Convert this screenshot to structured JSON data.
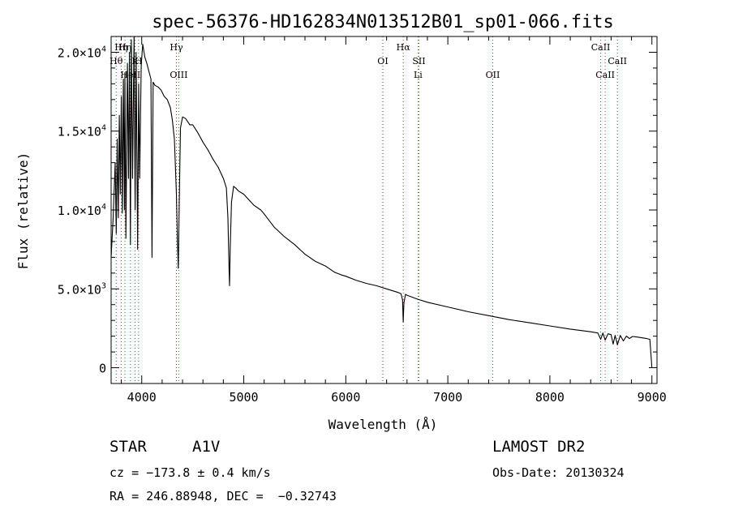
{
  "chart_data": {
    "type": "line",
    "title": "spec-56376-HD162834N013512B01_sp01-066.fits",
    "xlabel": "Wavelength (Å)",
    "ylabel": "Flux (relative)",
    "xlim": [
      3700,
      9050
    ],
    "ylim": [
      -1000,
      21000
    ],
    "x_ticks": [
      {
        "value": 4000,
        "label": "4000"
      },
      {
        "value": 5000,
        "label": "5000"
      },
      {
        "value": 6000,
        "label": "6000"
      },
      {
        "value": 7000,
        "label": "7000"
      },
      {
        "value": 8000,
        "label": "8000"
      },
      {
        "value": 9000,
        "label": "9000"
      }
    ],
    "y_ticks": [
      {
        "value": 0,
        "mant": "0",
        "exp": ""
      },
      {
        "value": 5000,
        "mant": "5.0×10",
        "exp": "3"
      },
      {
        "value": 10000,
        "mant": "1.0×10",
        "exp": "4"
      },
      {
        "value": 15000,
        "mant": "1.5×10",
        "exp": "4"
      },
      {
        "value": 20000,
        "mant": "2.0×10",
        "exp": "4"
      }
    ],
    "grid": false,
    "series": [
      {
        "color": "#000000",
        "x": [
          3700,
          3720,
          3740,
          3750,
          3760,
          3770,
          3780,
          3790,
          3800,
          3810,
          3820,
          3830,
          3835,
          3845,
          3860,
          3870,
          3880,
          3889,
          3898,
          3910,
          3925,
          3935,
          3945,
          3960,
          3970,
          3980,
          3995,
          4010,
          4030,
          4050,
          4070,
          4090,
          4101,
          4112,
          4130,
          4160,
          4190,
          4220,
          4250,
          4280,
          4300,
          4320,
          4340,
          4350,
          4358,
          4368,
          4380,
          4400,
          4430,
          4471,
          4500,
          4550,
          4600,
          4650,
          4700,
          4750,
          4800,
          4830,
          4845,
          4855,
          4861,
          4867,
          4880,
          4900,
          4920,
          4950,
          5000,
          5100,
          5167,
          5200,
          5300,
          5400,
          5500,
          5600,
          5700,
          5800,
          5890,
          5950,
          6000,
          6100,
          6200,
          6300,
          6400,
          6500,
          6540,
          6556,
          6563,
          6570,
          6585,
          6600,
          6700,
          6800,
          7000,
          7200,
          7400,
          7600,
          7800,
          8000,
          8200,
          8400,
          8470,
          8498,
          8520,
          8542,
          8570,
          8600,
          8620,
          8640,
          8662,
          8690,
          8720,
          8750,
          8780,
          8810,
          8850,
          8900,
          8950,
          8980,
          9000
        ],
        "y": [
          7000,
          9500,
          13000,
          8500,
          14500,
          9500,
          16000,
          11000,
          17200,
          9800,
          18300,
          10000,
          18700,
          8200,
          19300,
          12000,
          20000,
          7800,
          20800,
          12000,
          21000,
          10000,
          20000,
          7500,
          18000,
          12000,
          19200,
          20500,
          19700,
          19300,
          18800,
          18300,
          7000,
          18100,
          17900,
          17800,
          17600,
          17200,
          17000,
          16500,
          15700,
          14500,
          11000,
          8000,
          6300,
          10500,
          15200,
          15900,
          15800,
          15400,
          15400,
          14900,
          14300,
          13800,
          13200,
          12700,
          12000,
          11400,
          9500,
          6500,
          5200,
          7500,
          10500,
          11500,
          11400,
          11200,
          11000,
          10300,
          10000,
          9750,
          8900,
          8300,
          7800,
          7200,
          6750,
          6450,
          6050,
          5900,
          5800,
          5550,
          5350,
          5200,
          5000,
          4800,
          4700,
          4300,
          2900,
          4100,
          4650,
          4600,
          4350,
          4150,
          3850,
          3550,
          3300,
          3050,
          2850,
          2650,
          2450,
          2280,
          2200,
          1800,
          2200,
          1750,
          2150,
          2100,
          1500,
          2050,
          1450,
          2050,
          1700,
          2000,
          1850,
          1980,
          1950,
          1900,
          1850,
          1800,
          0
        ]
      }
    ],
    "line_markers": [
      {
        "x": 3750,
        "label": "Hθ",
        "row": 2
      },
      {
        "x": 3798,
        "label": "Hη",
        "row": 1
      },
      {
        "x": 3835,
        "label": "Hη",
        "row": 1
      },
      {
        "x": 3889,
        "label": "HeII",
        "row": 3
      },
      {
        "x": 3934,
        "label": "K",
        "row": 2
      },
      {
        "x": 3969,
        "label": "H",
        "row": 2
      },
      {
        "x": 4340,
        "label": "Hγ",
        "row": 1
      },
      {
        "x": 4363,
        "label": "OIII",
        "row": 3
      },
      {
        "x": 6363,
        "label": "OI",
        "row": 2
      },
      {
        "x": 6563,
        "label": "Hα",
        "row": 1
      },
      {
        "x": 6717,
        "label": "SII",
        "row": 2
      },
      {
        "x": 6708,
        "label": "Li",
        "row": 3
      },
      {
        "x": 7440,
        "label": "OII",
        "row": 3
      },
      {
        "x": 8498,
        "label": "CaII",
        "row": 1
      },
      {
        "x": 8542,
        "label": "CaII",
        "row": 3
      },
      {
        "x": 8662,
        "label": "CaII",
        "row": 2
      }
    ]
  },
  "info": {
    "class_label": "STAR",
    "subclass": "A1V",
    "survey": "LAMOST DR2",
    "cz": "cz = −173.8 ± 0.4 km/s",
    "obs_date": "Obs-Date: 20130324",
    "coords": "RA = 246.88948, DEC =  −0.32743"
  }
}
